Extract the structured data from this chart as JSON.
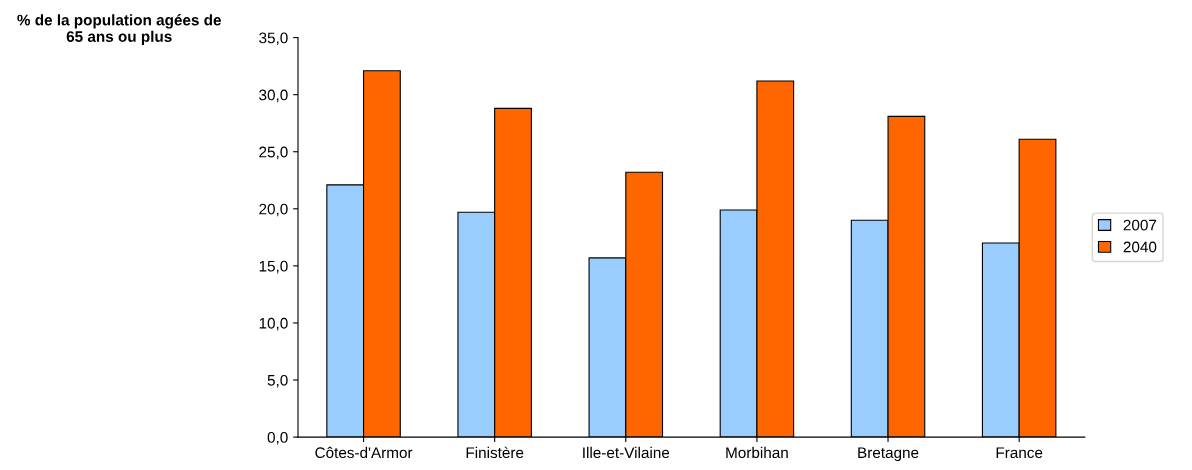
{
  "chart_data": {
    "type": "bar",
    "ylabel": "% de la population agées de\n65 ans ou plus",
    "categories": [
      "Côtes-d'Armor",
      "Finistère",
      "Ille-et-Vilaine",
      "Morbihan",
      "Bretagne",
      "France"
    ],
    "series": [
      {
        "name": "2007",
        "color": "#99ccff",
        "values": [
          22.1,
          19.7,
          15.7,
          19.9,
          19.0,
          17.0
        ]
      },
      {
        "name": "2040",
        "color": "#ff6600",
        "values": [
          32.1,
          28.8,
          23.2,
          31.2,
          28.1,
          26.1
        ]
      }
    ],
    "ylim": [
      0,
      35
    ],
    "yticks": [
      {
        "value": 0,
        "label": "0,0"
      },
      {
        "value": 5,
        "label": "5,0"
      },
      {
        "value": 10,
        "label": "10,0"
      },
      {
        "value": 15,
        "label": "15,0"
      },
      {
        "value": 20,
        "label": "20,0"
      },
      {
        "value": 25,
        "label": "25,0"
      },
      {
        "value": 30,
        "label": "30,0"
      },
      {
        "value": 35,
        "label": "35,0"
      }
    ],
    "grid": false,
    "legend": "right"
  }
}
